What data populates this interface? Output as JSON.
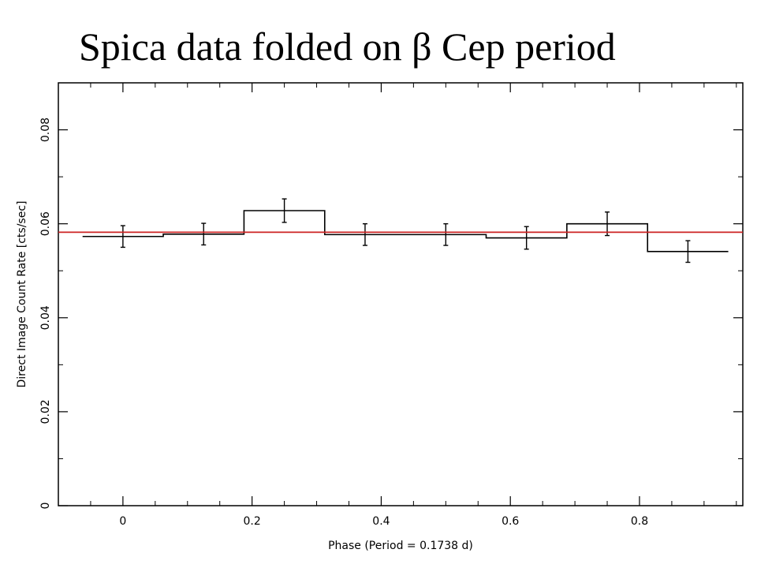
{
  "title": "Spica data folded on β Cep period",
  "chart_data": {
    "type": "step",
    "title": "Spica data folded on β Cep period",
    "xlabel": "Phase (Period = 0.1738 d)",
    "ylabel": "Direct Image Count Rate [cts/sec]",
    "xlim": [
      -0.1,
      0.96
    ],
    "ylim": [
      0,
      0.09
    ],
    "x_ticks": [
      0,
      0.2,
      0.4,
      0.6,
      0.8
    ],
    "x_tick_labels": [
      "0",
      "0.2",
      "0.4",
      "0.6",
      "0.8"
    ],
    "y_ticks": [
      0,
      0.02,
      0.04,
      0.06,
      0.08
    ],
    "y_tick_labels": [
      "0",
      "0.02",
      "0.04",
      "0.06",
      "0.08"
    ],
    "bin_width": 0.125,
    "series": [
      {
        "x": [
          0,
          0.125,
          0.25,
          0.375,
          0.5,
          0.625,
          0.75,
          0.875
        ],
        "values": [
          0.0573,
          0.0578,
          0.0628,
          0.0577,
          0.0577,
          0.057,
          0.06,
          0.0541
        ],
        "errors": [
          0.0023,
          0.0023,
          0.0025,
          0.0023,
          0.0023,
          0.0024,
          0.0025,
          0.0023
        ],
        "color": "#000000"
      }
    ],
    "reference_line": {
      "y": 0.0582,
      "color": "#cc2222"
    },
    "grid": false
  }
}
